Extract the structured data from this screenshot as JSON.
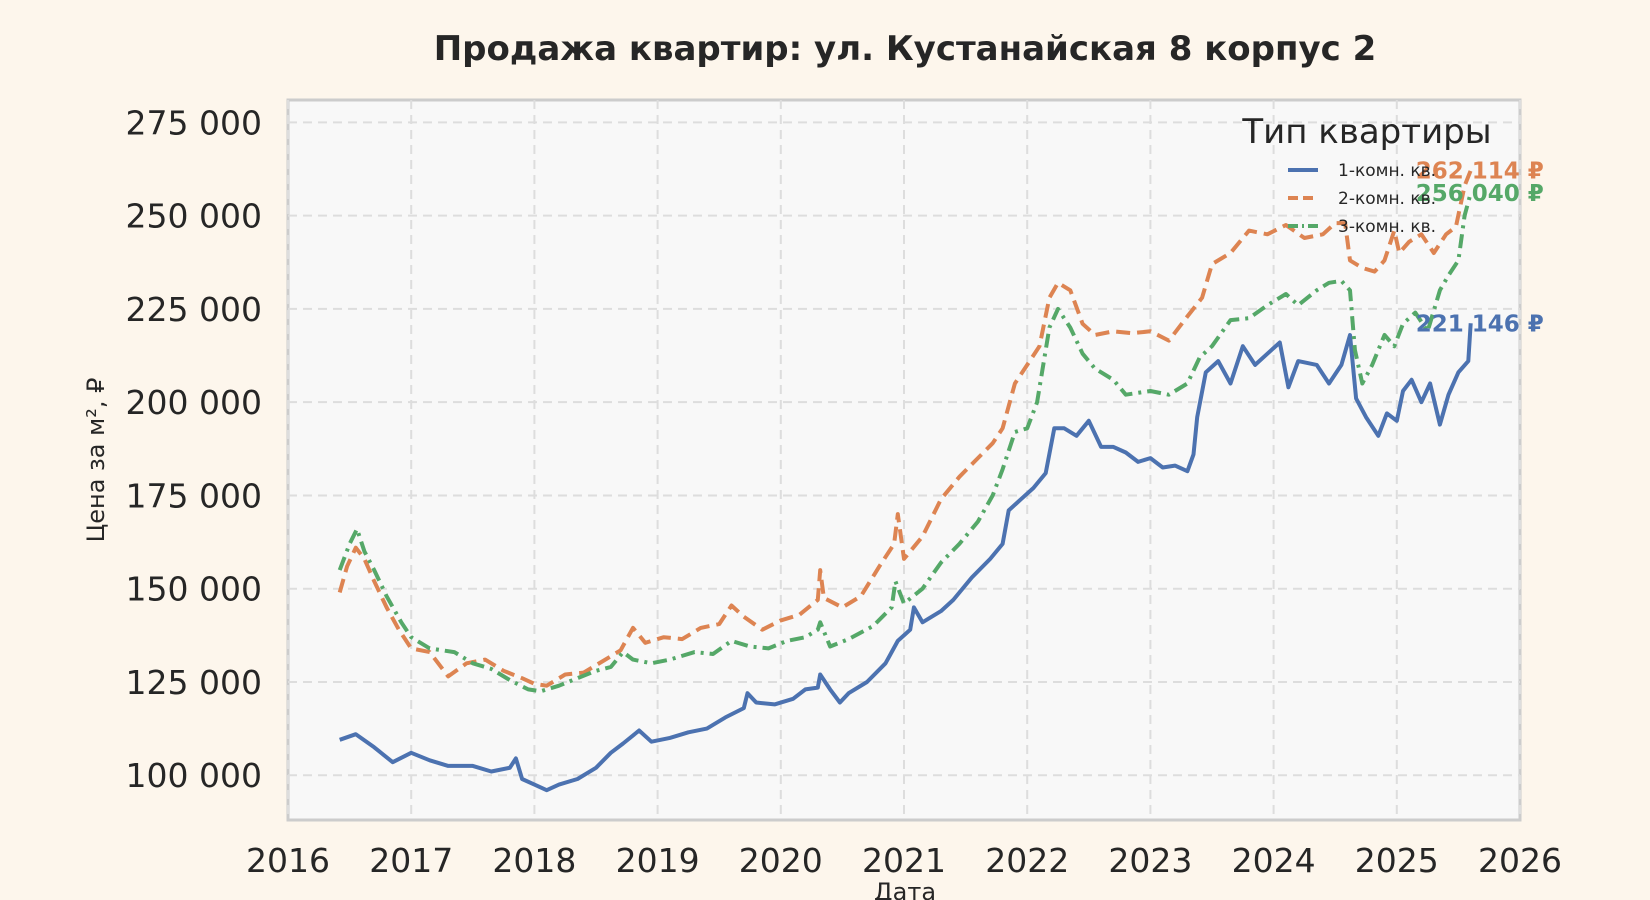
{
  "chart_data": {
    "type": "line",
    "title": "Продажа квартир: ул. Кустанайская 8 корпус 2",
    "xlabel": "Дата",
    "ylabel": "Цена за м², ₽",
    "xlim": [
      2016,
      2026
    ],
    "ylim": [
      88000,
      281000
    ],
    "x_ticks": [
      "2016",
      "2017",
      "2018",
      "2019",
      "2020",
      "2021",
      "2022",
      "2023",
      "2024",
      "2025",
      "2026"
    ],
    "y_ticks": [
      "100 000",
      "125 000",
      "150 000",
      "175 000",
      "200 000",
      "225 000",
      "250 000",
      "275 000"
    ],
    "grid": true,
    "legend": {
      "title": "Тип квартиры",
      "placement": "top-right",
      "entries": [
        "1-комн. кв.",
        "2-комн. кв.",
        "3-комн. кв."
      ]
    },
    "series": [
      {
        "name": "1-комн. кв.",
        "color": "#4c72b0",
        "dash": "solid",
        "end_label": "221 146 ₽",
        "points": [
          [
            2016.42,
            109500
          ],
          [
            2016.55,
            111000
          ],
          [
            2016.7,
            107500
          ],
          [
            2016.85,
            103500
          ],
          [
            2017.0,
            106000
          ],
          [
            2017.15,
            104000
          ],
          [
            2017.3,
            102500
          ],
          [
            2017.5,
            102500
          ],
          [
            2017.65,
            101000
          ],
          [
            2017.8,
            102000
          ],
          [
            2017.85,
            104500
          ],
          [
            2017.9,
            99000
          ],
          [
            2018.0,
            97500
          ],
          [
            2018.1,
            96000
          ],
          [
            2018.2,
            97500
          ],
          [
            2018.35,
            99000
          ],
          [
            2018.5,
            102000
          ],
          [
            2018.62,
            106000
          ],
          [
            2018.72,
            108500
          ],
          [
            2018.85,
            112000
          ],
          [
            2018.95,
            109000
          ],
          [
            2019.1,
            110000
          ],
          [
            2019.25,
            111500
          ],
          [
            2019.4,
            112500
          ],
          [
            2019.55,
            115500
          ],
          [
            2019.7,
            118000
          ],
          [
            2019.73,
            122000
          ],
          [
            2019.8,
            119500
          ],
          [
            2019.95,
            119000
          ],
          [
            2020.1,
            120500
          ],
          [
            2020.2,
            123000
          ],
          [
            2020.3,
            123500
          ],
          [
            2020.32,
            127000
          ],
          [
            2020.4,
            123000
          ],
          [
            2020.48,
            119500
          ],
          [
            2020.55,
            122000
          ],
          [
            2020.7,
            125000
          ],
          [
            2020.85,
            130000
          ],
          [
            2020.95,
            136000
          ],
          [
            2021.05,
            139000
          ],
          [
            2021.08,
            145000
          ],
          [
            2021.15,
            141000
          ],
          [
            2021.3,
            144000
          ],
          [
            2021.4,
            147000
          ],
          [
            2021.55,
            153000
          ],
          [
            2021.7,
            158000
          ],
          [
            2021.8,
            162000
          ],
          [
            2021.85,
            171000
          ],
          [
            2021.95,
            174000
          ],
          [
            2022.05,
            177000
          ],
          [
            2022.15,
            181000
          ],
          [
            2022.22,
            193000
          ],
          [
            2022.3,
            193000
          ],
          [
            2022.4,
            191000
          ],
          [
            2022.5,
            195000
          ],
          [
            2022.6,
            188000
          ],
          [
            2022.7,
            188000
          ],
          [
            2022.8,
            186500
          ],
          [
            2022.9,
            184000
          ],
          [
            2023.0,
            185000
          ],
          [
            2023.1,
            182500
          ],
          [
            2023.2,
            183000
          ],
          [
            2023.3,
            181500
          ],
          [
            2023.35,
            186000
          ],
          [
            2023.38,
            196000
          ],
          [
            2023.45,
            208000
          ],
          [
            2023.55,
            211000
          ],
          [
            2023.65,
            205000
          ],
          [
            2023.75,
            215000
          ],
          [
            2023.85,
            210000
          ],
          [
            2023.95,
            213000
          ],
          [
            2024.05,
            216000
          ],
          [
            2024.12,
            204000
          ],
          [
            2024.2,
            211000
          ],
          [
            2024.35,
            210000
          ],
          [
            2024.45,
            205000
          ],
          [
            2024.55,
            210000
          ],
          [
            2024.62,
            218000
          ],
          [
            2024.67,
            201000
          ],
          [
            2024.75,
            196000
          ],
          [
            2024.85,
            191000
          ],
          [
            2024.92,
            197000
          ],
          [
            2025.0,
            195000
          ],
          [
            2025.05,
            203000
          ],
          [
            2025.12,
            206000
          ],
          [
            2025.2,
            200000
          ],
          [
            2025.27,
            205000
          ],
          [
            2025.35,
            194000
          ],
          [
            2025.42,
            202000
          ],
          [
            2025.5,
            208000
          ],
          [
            2025.58,
            211000
          ],
          [
            2025.6,
            221146
          ]
        ]
      },
      {
        "name": "2-комн. кв.",
        "color": "#dd8452",
        "dash": "dash",
        "end_label": "262 114 ₽",
        "points": [
          [
            2016.42,
            149000
          ],
          [
            2016.48,
            156000
          ],
          [
            2016.55,
            161000
          ],
          [
            2016.62,
            158000
          ],
          [
            2016.7,
            152000
          ],
          [
            2016.8,
            145000
          ],
          [
            2016.9,
            139000
          ],
          [
            2017.0,
            134000
          ],
          [
            2017.15,
            133000
          ],
          [
            2017.3,
            126500
          ],
          [
            2017.45,
            130000
          ],
          [
            2017.6,
            131000
          ],
          [
            2017.75,
            128000
          ],
          [
            2017.9,
            126000
          ],
          [
            2018.0,
            124500
          ],
          [
            2018.1,
            124000
          ],
          [
            2018.25,
            127000
          ],
          [
            2018.4,
            127500
          ],
          [
            2018.55,
            130500
          ],
          [
            2018.7,
            133500
          ],
          [
            2018.8,
            139500
          ],
          [
            2018.9,
            135500
          ],
          [
            2019.05,
            137000
          ],
          [
            2019.2,
            136500
          ],
          [
            2019.35,
            139500
          ],
          [
            2019.5,
            140500
          ],
          [
            2019.6,
            145500
          ],
          [
            2019.7,
            142500
          ],
          [
            2019.85,
            139000
          ],
          [
            2020.0,
            141500
          ],
          [
            2020.15,
            143000
          ],
          [
            2020.3,
            147000
          ],
          [
            2020.32,
            155000
          ],
          [
            2020.35,
            147500
          ],
          [
            2020.5,
            145000
          ],
          [
            2020.65,
            148000
          ],
          [
            2020.8,
            156000
          ],
          [
            2020.92,
            162000
          ],
          [
            2020.95,
            170000
          ],
          [
            2021.0,
            158000
          ],
          [
            2021.15,
            164000
          ],
          [
            2021.3,
            174000
          ],
          [
            2021.45,
            180000
          ],
          [
            2021.6,
            185000
          ],
          [
            2021.72,
            189000
          ],
          [
            2021.8,
            193000
          ],
          [
            2021.9,
            205000
          ],
          [
            2022.0,
            210000
          ],
          [
            2022.1,
            215000
          ],
          [
            2022.18,
            228000
          ],
          [
            2022.25,
            232000
          ],
          [
            2022.35,
            230000
          ],
          [
            2022.45,
            221000
          ],
          [
            2022.55,
            218000
          ],
          [
            2022.7,
            219000
          ],
          [
            2022.85,
            218500
          ],
          [
            2023.0,
            219000
          ],
          [
            2023.15,
            216500
          ],
          [
            2023.3,
            223000
          ],
          [
            2023.42,
            228000
          ],
          [
            2023.5,
            237000
          ],
          [
            2023.65,
            240000
          ],
          [
            2023.8,
            246000
          ],
          [
            2023.95,
            245000
          ],
          [
            2024.1,
            247500
          ],
          [
            2024.25,
            244000
          ],
          [
            2024.4,
            245000
          ],
          [
            2024.5,
            248000
          ],
          [
            2024.58,
            248000
          ],
          [
            2024.62,
            238000
          ],
          [
            2024.72,
            236000
          ],
          [
            2024.82,
            235000
          ],
          [
            2024.9,
            238000
          ],
          [
            2024.98,
            246000
          ],
          [
            2025.02,
            240000
          ],
          [
            2025.1,
            243000
          ],
          [
            2025.2,
            245000
          ],
          [
            2025.3,
            240000
          ],
          [
            2025.4,
            245000
          ],
          [
            2025.48,
            247000
          ],
          [
            2025.55,
            258000
          ],
          [
            2025.6,
            262114
          ]
        ]
      },
      {
        "name": "3-комн. кв.",
        "color": "#55a868",
        "dash": "dashdot",
        "end_label": "256 040 ₽",
        "points": [
          [
            2016.42,
            155000
          ],
          [
            2016.5,
            162000
          ],
          [
            2016.56,
            166000
          ],
          [
            2016.62,
            160000
          ],
          [
            2016.7,
            155000
          ],
          [
            2016.8,
            148000
          ],
          [
            2016.92,
            141000
          ],
          [
            2017.0,
            137000
          ],
          [
            2017.15,
            134000
          ],
          [
            2017.35,
            133000
          ],
          [
            2017.5,
            130000
          ],
          [
            2017.65,
            128500
          ],
          [
            2017.8,
            125500
          ],
          [
            2017.95,
            123000
          ],
          [
            2018.05,
            122500
          ],
          [
            2018.2,
            124000
          ],
          [
            2018.35,
            126000
          ],
          [
            2018.5,
            128000
          ],
          [
            2018.62,
            129000
          ],
          [
            2018.72,
            133000
          ],
          [
            2018.8,
            131000
          ],
          [
            2018.95,
            130000
          ],
          [
            2019.1,
            131000
          ],
          [
            2019.3,
            133000
          ],
          [
            2019.45,
            132500
          ],
          [
            2019.6,
            136000
          ],
          [
            2019.75,
            134500
          ],
          [
            2019.9,
            134000
          ],
          [
            2020.05,
            136000
          ],
          [
            2020.2,
            137000
          ],
          [
            2020.3,
            139000
          ],
          [
            2020.32,
            141000
          ],
          [
            2020.4,
            134500
          ],
          [
            2020.55,
            136500
          ],
          [
            2020.75,
            140000
          ],
          [
            2020.9,
            145000
          ],
          [
            2020.93,
            152000
          ],
          [
            2021.0,
            146000
          ],
          [
            2021.15,
            150000
          ],
          [
            2021.3,
            157000
          ],
          [
            2021.45,
            162000
          ],
          [
            2021.6,
            168000
          ],
          [
            2021.72,
            175000
          ],
          [
            2021.8,
            182000
          ],
          [
            2021.9,
            192000
          ],
          [
            2022.0,
            193000
          ],
          [
            2022.08,
            200000
          ],
          [
            2022.18,
            220000
          ],
          [
            2022.25,
            225000
          ],
          [
            2022.35,
            220000
          ],
          [
            2022.45,
            213000
          ],
          [
            2022.55,
            209000
          ],
          [
            2022.7,
            206000
          ],
          [
            2022.8,
            202000
          ],
          [
            2022.9,
            202500
          ],
          [
            2023.0,
            203000
          ],
          [
            2023.15,
            202000
          ],
          [
            2023.3,
            205000
          ],
          [
            2023.4,
            212000
          ],
          [
            2023.5,
            215000
          ],
          [
            2023.65,
            222000
          ],
          [
            2023.8,
            222500
          ],
          [
            2023.95,
            226000
          ],
          [
            2024.1,
            229000
          ],
          [
            2024.2,
            226000
          ],
          [
            2024.35,
            230000
          ],
          [
            2024.45,
            232000
          ],
          [
            2024.55,
            232500
          ],
          [
            2024.62,
            230000
          ],
          [
            2024.66,
            214000
          ],
          [
            2024.72,
            205000
          ],
          [
            2024.8,
            210000
          ],
          [
            2024.9,
            218000
          ],
          [
            2024.98,
            215000
          ],
          [
            2025.05,
            221000
          ],
          [
            2025.15,
            224000
          ],
          [
            2025.25,
            219000
          ],
          [
            2025.35,
            230000
          ],
          [
            2025.42,
            234000
          ],
          [
            2025.5,
            238000
          ],
          [
            2025.55,
            250000
          ],
          [
            2025.6,
            256040
          ]
        ]
      }
    ]
  },
  "colors": {
    "page_background": "#fdf6ec",
    "plot_background": "#f8f8f8",
    "grid": "#dddddd",
    "frame": "#cccccc",
    "text": "#262626"
  }
}
